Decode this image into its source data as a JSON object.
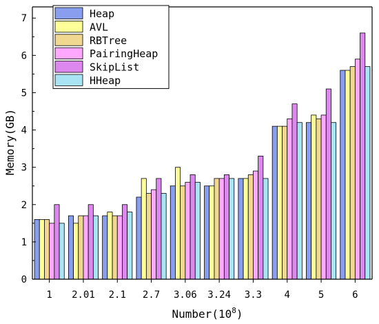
{
  "chart_data": {
    "type": "bar",
    "title": "",
    "xlabel": "Number(10",
    "xlabel_sup": "8",
    "xlabel_close": ")",
    "ylabel": "Memory(GB)",
    "ylim": [
      0,
      7.3
    ],
    "yticks": [
      "0",
      "1",
      "2",
      "3",
      "4",
      "5",
      "6",
      "7"
    ],
    "grid": false,
    "legend": "top-left",
    "categories": [
      "1",
      "2.01",
      "2.1",
      "2.7",
      "3.06",
      "3.24",
      "3.3",
      "4",
      "5",
      "6"
    ],
    "series": [
      {
        "name": "Heap",
        "color": "#8a9ef0",
        "values": [
          1.6,
          1.7,
          1.7,
          2.2,
          2.5,
          2.5,
          2.7,
          4.1,
          4.2,
          5.6
        ]
      },
      {
        "name": "AVL",
        "color": "#ffff99",
        "values": [
          1.6,
          1.5,
          1.8,
          2.7,
          3.0,
          2.5,
          2.7,
          4.1,
          4.4,
          5.6
        ]
      },
      {
        "name": "RBTree",
        "color": "#f0d890",
        "values": [
          1.6,
          1.7,
          1.7,
          2.3,
          2.5,
          2.7,
          2.8,
          4.1,
          4.3,
          5.7
        ]
      },
      {
        "name": "PairingHeap",
        "color": "#ffa8ff",
        "values": [
          1.5,
          1.7,
          1.7,
          2.4,
          2.6,
          2.7,
          2.9,
          4.3,
          4.4,
          5.9
        ]
      },
      {
        "name": "SkipList",
        "color": "#dd88ee",
        "values": [
          2.0,
          2.0,
          2.0,
          2.7,
          2.8,
          2.8,
          3.3,
          4.7,
          5.1,
          6.6
        ]
      },
      {
        "name": "HHeap",
        "color": "#a8e4f4",
        "values": [
          1.5,
          1.7,
          1.8,
          2.3,
          2.6,
          2.7,
          2.7,
          4.2,
          4.2,
          5.7
        ]
      }
    ]
  }
}
